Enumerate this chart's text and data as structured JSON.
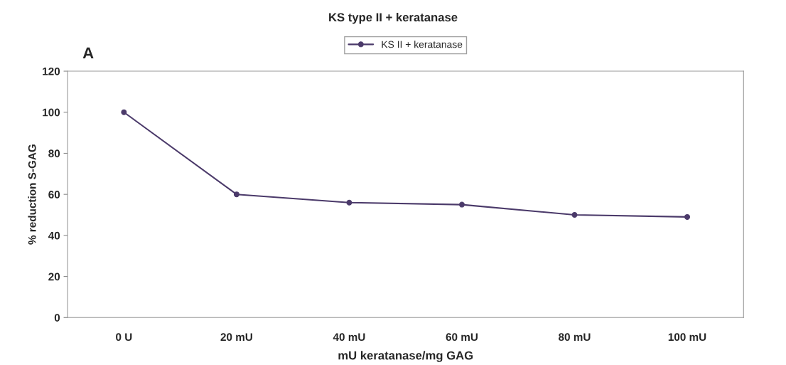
{
  "chart_data": {
    "type": "line",
    "title": "KS type II + keratanase",
    "xlabel": "mU keratanase/mg GAG",
    "ylabel": "% reduction S-GAG",
    "annotations": [
      "A"
    ],
    "categories": [
      "0 U",
      "20 mU",
      "40 mU",
      "60 mU",
      "80 mU",
      "100 mU"
    ],
    "series": [
      {
        "name": "KS II + keratanase",
        "color": "#4b3a6a",
        "values": [
          100,
          60,
          56,
          55,
          50,
          49
        ]
      }
    ],
    "ylim": [
      0,
      120
    ],
    "yticks": [
      0,
      20,
      40,
      60,
      80,
      100,
      120
    ],
    "grid": false,
    "legend": "top",
    "marker": "circle",
    "line_style": "solid"
  }
}
